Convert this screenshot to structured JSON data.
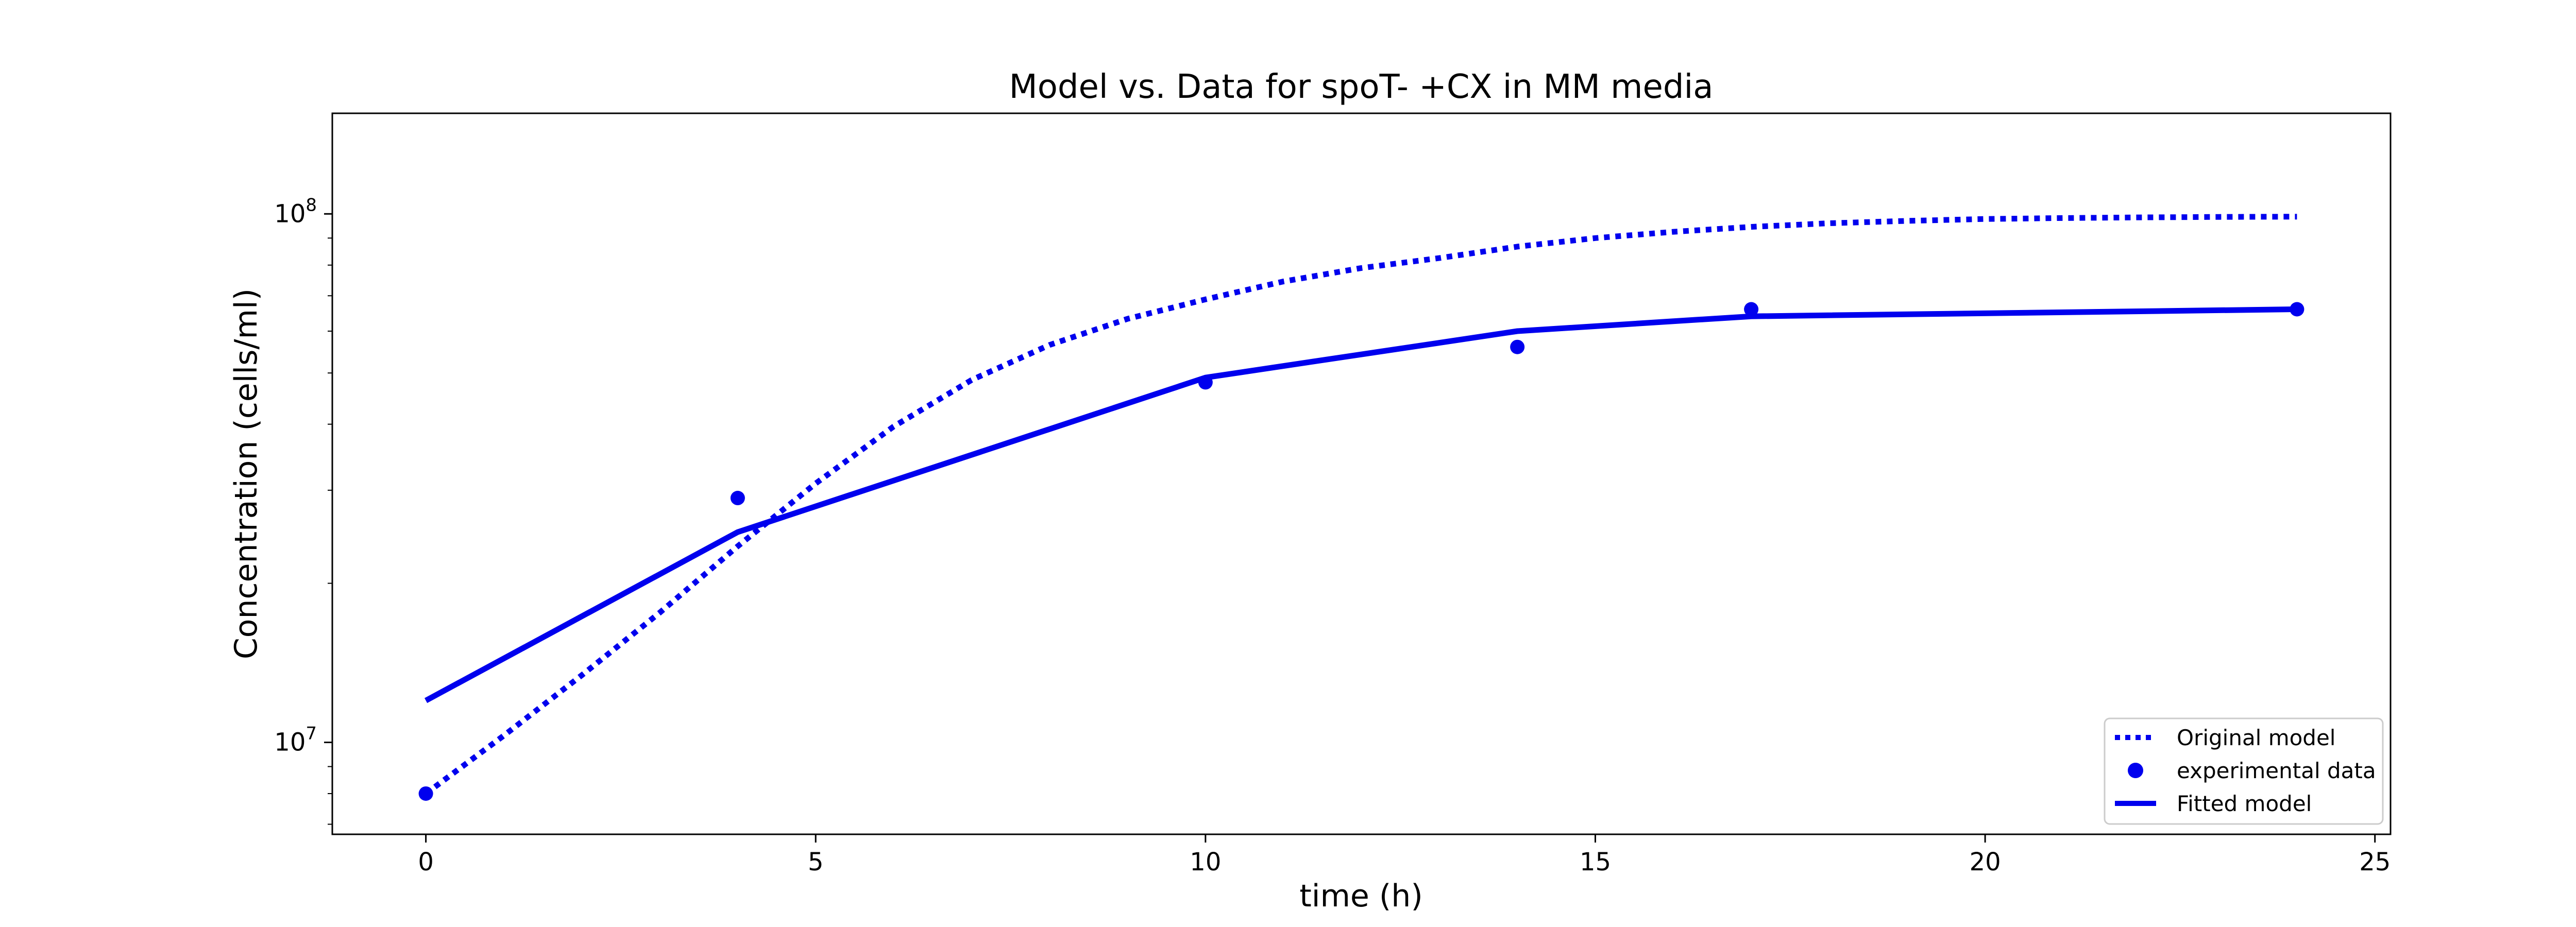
{
  "chart_data": {
    "type": "line",
    "title": "Model vs. Data for spoT- +CX in MM media",
    "xlabel": "time (h)",
    "ylabel": "Concentration (cells/ml)",
    "xlim": [
      -1.2,
      25.2
    ],
    "ylim": [
      6700000,
      155000000
    ],
    "yscale": "log",
    "x_ticks": [
      0,
      5,
      10,
      15,
      20,
      25
    ],
    "x_tick_labels": [
      "0",
      "5",
      "10",
      "15",
      "20",
      "25"
    ],
    "y_ticks": [
      {
        "value": 10000000,
        "base": "10",
        "exp": "7"
      },
      {
        "value": 100000000,
        "base": "10",
        "exp": "8"
      }
    ],
    "grid": false,
    "legend_position": "lower right",
    "color": "#0000ee",
    "series": [
      {
        "name": "Original model",
        "style": "dotted",
        "x": [
          0,
          1,
          2,
          3,
          4,
          5,
          6,
          7,
          8,
          9,
          10,
          11,
          12,
          13,
          14,
          15,
          16,
          17,
          18,
          19,
          20,
          21,
          22,
          23,
          24
        ],
        "y": [
          8000000,
          10300000,
          13400000,
          17600000,
          23500000,
          30900000,
          39600000,
          48500000,
          56500000,
          63300000,
          68900000,
          74500000,
          79000000,
          82500000,
          86700000,
          90000000,
          92500000,
          94500000,
          96000000,
          97000000,
          97800000,
          98200000,
          98500000,
          98700000,
          98800000
        ]
      },
      {
        "name": "experimental data",
        "style": "markers",
        "x": [
          0,
          4,
          10,
          14,
          17,
          24
        ],
        "y": [
          8000000,
          29000000,
          48000000,
          56000000,
          66000000,
          66000000
        ]
      },
      {
        "name": "Fitted model",
        "style": "solid",
        "x": [
          0,
          4,
          10,
          14,
          17,
          24
        ],
        "y": [
          12000000,
          25000000,
          49000000,
          60000000,
          64000000,
          66000000
        ]
      }
    ]
  }
}
